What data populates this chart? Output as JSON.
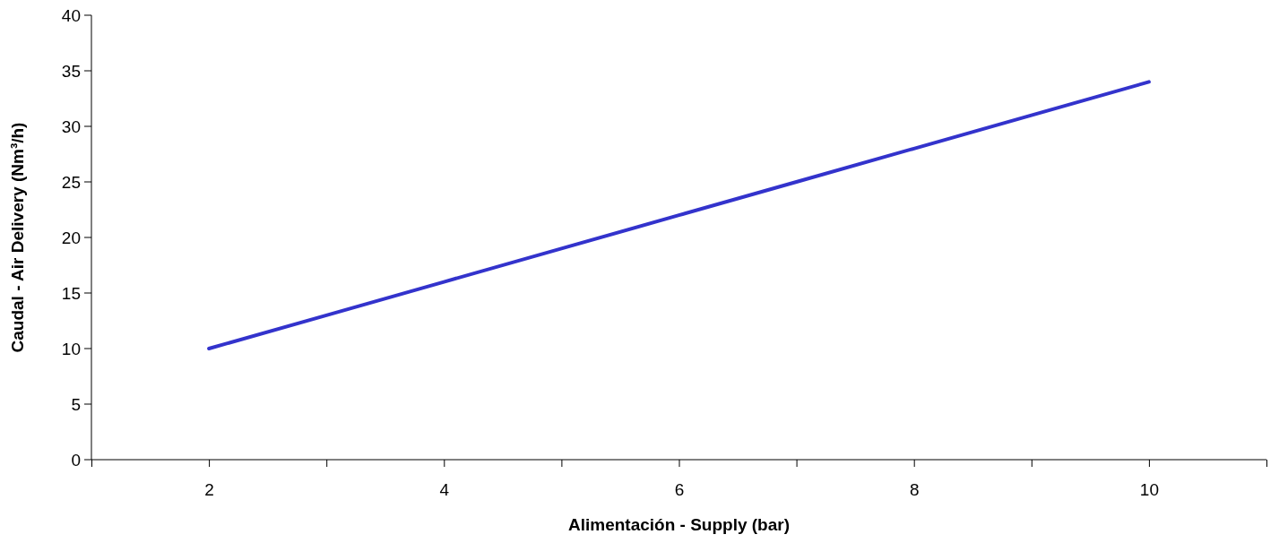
{
  "chart_data": {
    "type": "line",
    "xlabel": "Alimentación - Supply (bar)",
    "ylabel": "Caudal - Air Delivery (Nm³/h)",
    "x": [
      2,
      3,
      4,
      5,
      6,
      7,
      8,
      9,
      10
    ],
    "series": [
      {
        "color": "#3333cc",
        "values": [
          10,
          13,
          16,
          19,
          22,
          25,
          28,
          31,
          34
        ]
      }
    ],
    "xlim": [
      1,
      11
    ],
    "xticks": [
      {
        "value": 1,
        "label": null
      },
      2,
      {
        "value": 3,
        "label": null
      },
      4,
      {
        "value": 5,
        "label": null
      },
      6,
      {
        "value": 7,
        "label": null
      },
      8,
      {
        "value": 9,
        "label": null
      },
      10,
      {
        "value": 11,
        "label": null
      }
    ],
    "ylim": [
      0,
      40
    ],
    "yticks": [
      0,
      5,
      10,
      15,
      20,
      25,
      30,
      35,
      40
    ],
    "grid": false,
    "marker": "none",
    "line_style": "solid"
  }
}
